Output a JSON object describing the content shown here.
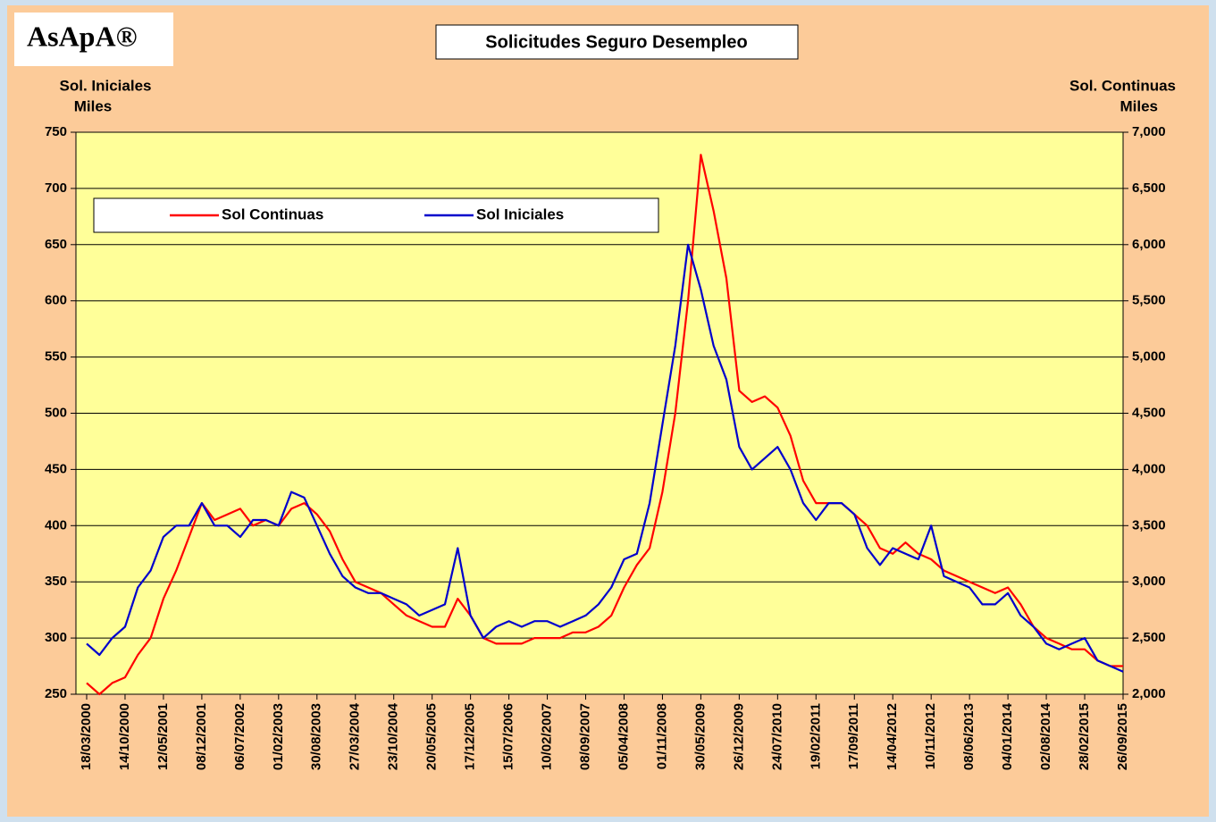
{
  "logo": "AsApA®",
  "chart_data": {
    "type": "line",
    "title": "Solicitudes Seguro Desempleo",
    "ylabel": [
      "Sol. Iniciales",
      "Miles"
    ],
    "y2label": [
      "Sol. Continuas",
      "Miles"
    ],
    "categories": [
      "18/03/2000",
      null,
      null,
      "14/10/2000",
      null,
      null,
      "12/05/2001",
      null,
      null,
      "08/12/2001",
      null,
      null,
      "06/07/2002",
      null,
      null,
      "01/02/2003",
      null,
      null,
      "30/08/2003",
      null,
      null,
      "27/03/2004",
      null,
      null,
      "23/10/2004",
      null,
      null,
      "20/05/2005",
      null,
      null,
      "17/12/2005",
      null,
      null,
      "15/07/2006",
      null,
      null,
      "10/02/2007",
      null,
      null,
      "08/09/2007",
      null,
      null,
      "05/04/2008",
      null,
      null,
      "01/11/2008",
      null,
      null,
      "30/05/2009",
      null,
      null,
      "26/12/2009",
      null,
      null,
      "24/07/2010",
      null,
      null,
      "19/02/2011",
      null,
      null,
      "17/09/2011",
      null,
      null,
      "14/04/2012",
      null,
      null,
      "10/11/2012",
      null,
      null,
      "08/06/2013",
      null,
      null,
      "04/01/2014",
      null,
      null,
      "02/08/2014",
      null,
      null,
      "28/02/2015",
      null,
      null,
      "26/09/2015"
    ],
    "series": [
      {
        "name": "Sol Continuas",
        "color": "#ff0000",
        "axis": "y2",
        "values": [
          2100,
          2000,
          2100,
          2150,
          2350,
          2500,
          2850,
          3100,
          3400,
          3700,
          3550,
          3600,
          3650,
          3500,
          3550,
          3500,
          3650,
          3700,
          3600,
          3450,
          3200,
          3000,
          2950,
          2900,
          2800,
          2700,
          2650,
          2600,
          2600,
          2850,
          2700,
          2500,
          2450,
          2450,
          2450,
          2500,
          2500,
          2500,
          2550,
          2550,
          2600,
          2700,
          2950,
          3150,
          3300,
          3800,
          4500,
          5500,
          6800,
          6300,
          5700,
          4700,
          4600,
          4650,
          4550,
          4300,
          3900,
          3700,
          3700,
          3700,
          3600,
          3500,
          3300,
          3250,
          3350,
          3250,
          3200,
          3100,
          3050,
          3000,
          2950,
          2900,
          2950,
          2800,
          2600,
          2500,
          2450,
          2400,
          2400,
          2300,
          2250,
          2250
        ]
      },
      {
        "name": "Sol Iniciales",
        "color": "#0000cc",
        "axis": "y",
        "values": [
          295,
          285,
          300,
          310,
          345,
          360,
          390,
          400,
          400,
          420,
          400,
          400,
          390,
          405,
          405,
          400,
          430,
          425,
          400,
          375,
          355,
          345,
          340,
          340,
          335,
          330,
          320,
          325,
          330,
          380,
          320,
          300,
          310,
          315,
          310,
          315,
          315,
          310,
          315,
          320,
          330,
          345,
          370,
          375,
          420,
          490,
          560,
          650,
          610,
          560,
          530,
          470,
          450,
          460,
          470,
          450,
          420,
          405,
          420,
          420,
          410,
          380,
          365,
          380,
          375,
          370,
          400,
          355,
          350,
          345,
          330,
          330,
          340,
          320,
          310,
          295,
          290,
          295,
          300,
          280,
          275,
          270
        ]
      }
    ],
    "ylim": [
      250,
      750
    ],
    "yticks": [
      250,
      300,
      350,
      400,
      450,
      500,
      550,
      600,
      650,
      700,
      750
    ],
    "y2lim": [
      2000,
      7000
    ],
    "y2ticks": [
      {
        "value": 2000,
        "label": "2,000"
      },
      {
        "value": 2500,
        "label": "2,500"
      },
      {
        "value": 3000,
        "label": "3,000"
      },
      {
        "value": 3500,
        "label": "3,500"
      },
      {
        "value": 4000,
        "label": "4,000"
      },
      {
        "value": 4500,
        "label": "4,500"
      },
      {
        "value": 5000,
        "label": "5,000"
      },
      {
        "value": 5500,
        "label": "5,500"
      },
      {
        "value": 6000,
        "label": "6,000"
      },
      {
        "value": 6500,
        "label": "6,500"
      },
      {
        "value": 7000,
        "label": "7,000"
      }
    ],
    "grid": true
  }
}
